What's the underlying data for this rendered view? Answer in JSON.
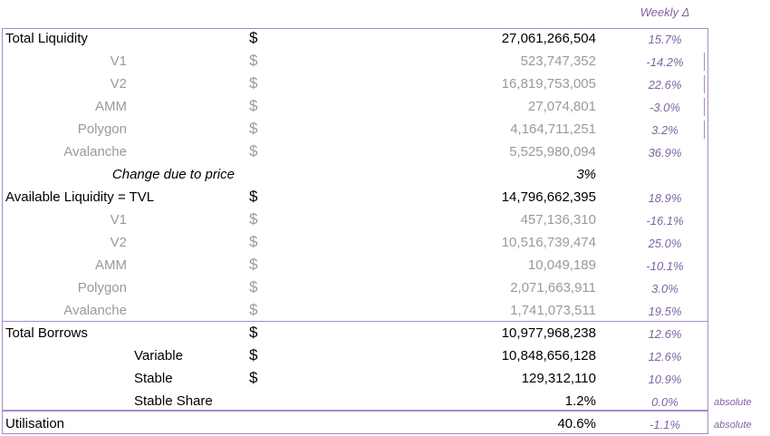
{
  "header": {
    "weekly_delta": "Weekly Δ"
  },
  "rows": [
    {
      "label": "Total Liquidity",
      "currency": "$",
      "value": "27,061,266,504",
      "pct": "15.7%",
      "note": ""
    },
    {
      "label": "V1",
      "currency": "$",
      "value": "523,747,352",
      "pct": "-14.2%",
      "note": ""
    },
    {
      "label": "V2",
      "currency": "$",
      "value": "16,819,753,005",
      "pct": "22.6%",
      "note": ""
    },
    {
      "label": "AMM",
      "currency": "$",
      "value": "27,074,801",
      "pct": "-3.0%",
      "note": ""
    },
    {
      "label": "Polygon",
      "currency": "$",
      "value": "4,164,711,251",
      "pct": "3.2%",
      "note": ""
    },
    {
      "label": "Avalanche",
      "currency": "$",
      "value": "5,525,980,094",
      "pct": "36.9%",
      "note": ""
    },
    {
      "label": "Change due to price",
      "currency": "",
      "value": "3%",
      "pct": "",
      "note": ""
    },
    {
      "label": "Available Liquidity  = TVL",
      "currency": "$",
      "value": "14,796,662,395",
      "pct": "18.9%",
      "note": ""
    },
    {
      "label": "V1",
      "currency": "$",
      "value": "457,136,310",
      "pct": "-16.1%",
      "note": ""
    },
    {
      "label": "V2",
      "currency": "$",
      "value": "10,516,739,474",
      "pct": "25.0%",
      "note": ""
    },
    {
      "label": "AMM",
      "currency": "$",
      "value": "10,049,189",
      "pct": "-10.1%",
      "note": ""
    },
    {
      "label": "Polygon",
      "currency": "$",
      "value": "2,071,663,911",
      "pct": "3.0%",
      "note": ""
    },
    {
      "label": "Avalanche",
      "currency": "$",
      "value": "1,741,073,511",
      "pct": "19.5%",
      "note": ""
    },
    {
      "label": "Total Borrows",
      "currency": "$",
      "value": "10,977,968,238",
      "pct": "12.6%",
      "note": ""
    },
    {
      "label": "Variable",
      "currency": "$",
      "value": "10,848,656,128",
      "pct": "12.6%",
      "note": ""
    },
    {
      "label": "Stable",
      "currency": "$",
      "value": "129,312,110",
      "pct": "10.9%",
      "note": ""
    },
    {
      "label": "Stable Share",
      "currency": "",
      "value": "1.2%",
      "pct": "0.0%",
      "note": "absolute"
    },
    {
      "label": "Utilisation",
      "currency": "",
      "value": "40.6%",
      "pct": "-1.1%",
      "note": "absolute"
    }
  ]
}
